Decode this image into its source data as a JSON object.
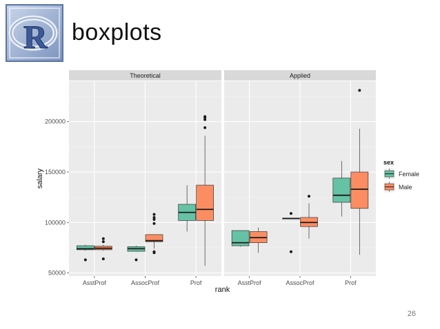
{
  "slide": {
    "title": "boxplots",
    "page_number": "26",
    "logo_letter": "R"
  },
  "colors": {
    "Female": "#66c2a5",
    "Male": "#fc8d62",
    "panel_bg": "#ebebeb",
    "strip_bg": "#d9d9d9",
    "grid": "#ffffff"
  },
  "chart_data": {
    "type": "boxplot",
    "xlabel": "rank",
    "ylabel": "salary",
    "ylim": [
      47000,
      240000
    ],
    "yticks": [
      50000,
      100000,
      150000,
      200000
    ],
    "ytick_labels": [
      "50000",
      "100000",
      "150000",
      "200000"
    ],
    "categories": [
      "AsstProf",
      "AssocProf",
      "Prof"
    ],
    "legend": {
      "title": "sex",
      "entries": [
        "Female",
        "Male"
      ],
      "position": "right"
    },
    "facets": [
      {
        "name": "Theoretical",
        "boxes": [
          {
            "rank": "AsstProf",
            "sex": "Female",
            "min": 72000,
            "q1": 73000,
            "median": 74000,
            "q3": 77000,
            "max": 78000,
            "outliers": [
              63000
            ]
          },
          {
            "rank": "AsstProf",
            "sex": "Male",
            "min": 72000,
            "q1": 73000,
            "median": 74500,
            "q3": 76500,
            "max": 78000,
            "outliers": [
              64000,
              81000,
              84000
            ]
          },
          {
            "rank": "AssocProf",
            "sex": "Female",
            "min": 71000,
            "q1": 71500,
            "median": 74000,
            "q3": 76000,
            "max": 77000,
            "outliers": [
              63000
            ]
          },
          {
            "rank": "AssocProf",
            "sex": "Male",
            "min": 74000,
            "q1": 81000,
            "median": 82000,
            "q3": 88000,
            "max": 88000,
            "outliers": [
              70000,
              71000,
              99000,
              103000,
              105000,
              108000
            ]
          },
          {
            "rank": "Prof",
            "sex": "Female",
            "min": 91000,
            "q1": 102000,
            "median": 110000,
            "q3": 118000,
            "max": 137000,
            "outliers": []
          },
          {
            "rank": "Prof",
            "sex": "Male",
            "min": 57000,
            "q1": 102000,
            "median": 113000,
            "q3": 137000,
            "max": 186000,
            "outliers": [
              194000,
              202000,
              204000,
              205000
            ]
          }
        ]
      },
      {
        "name": "Applied",
        "boxes": [
          {
            "rank": "AsstProf",
            "sex": "Female",
            "min": 76000,
            "q1": 77000,
            "median": 80000,
            "q3": 92000,
            "max": 92000,
            "outliers": []
          },
          {
            "rank": "AsstProf",
            "sex": "Male",
            "min": 70000,
            "q1": 80000,
            "median": 85000,
            "q3": 91000,
            "max": 95000,
            "outliers": []
          },
          {
            "rank": "AssocProf",
            "sex": "Female",
            "min": 104000,
            "q1": 104000,
            "median": 104000,
            "q3": 104000,
            "max": 104000,
            "outliers": [
              71000,
              109000
            ]
          },
          {
            "rank": "AssocProf",
            "sex": "Male",
            "min": 84000,
            "q1": 96000,
            "median": 100000,
            "q3": 105000,
            "max": 119000,
            "outliers": [
              126000
            ]
          },
          {
            "rank": "Prof",
            "sex": "Female",
            "min": 106000,
            "q1": 120000,
            "median": 127000,
            "q3": 144000,
            "max": 161000,
            "outliers": []
          },
          {
            "rank": "Prof",
            "sex": "Male",
            "min": 68000,
            "q1": 114000,
            "median": 133000,
            "q3": 150000,
            "max": 193000,
            "outliers": [
              231000
            ]
          }
        ]
      }
    ]
  }
}
